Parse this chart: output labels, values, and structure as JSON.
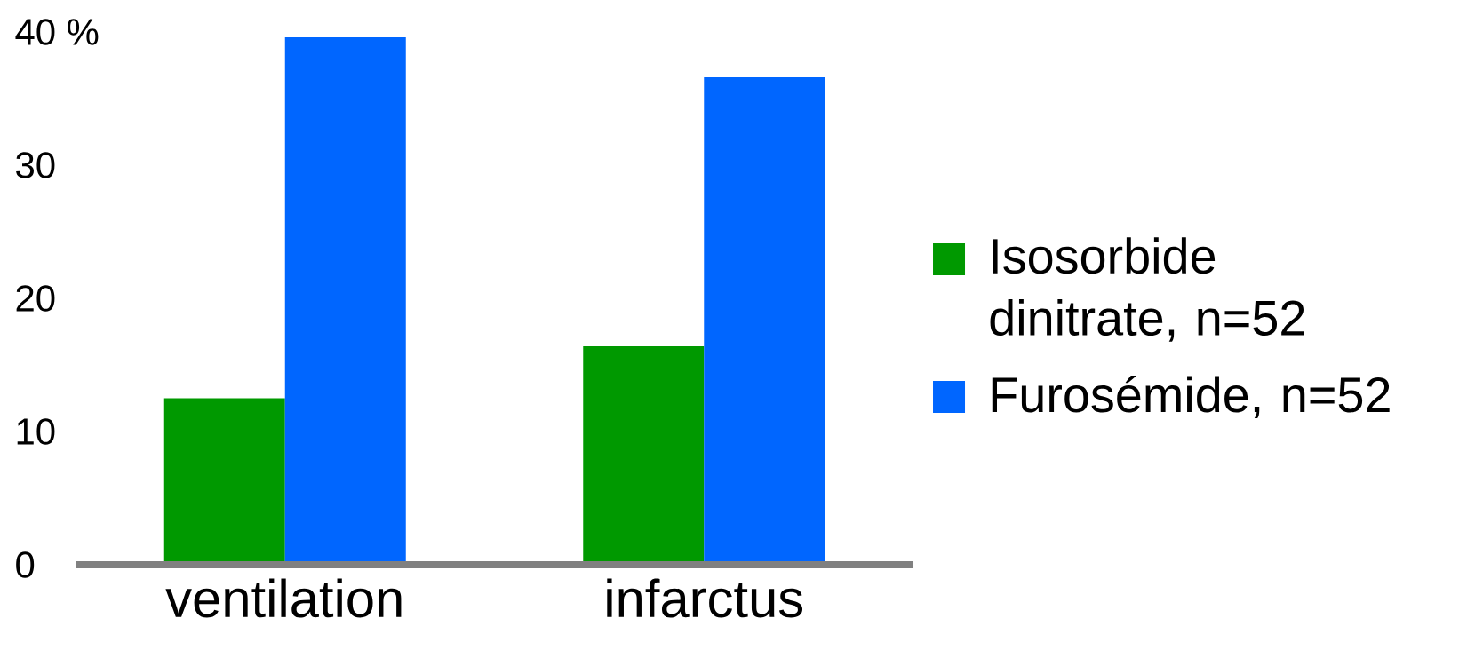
{
  "chart_data": {
    "type": "bar",
    "categories": [
      "ventilation",
      "infarctus"
    ],
    "series": [
      {
        "name": "Isosorbide dinitrate, n=52",
        "color": "#009900",
        "values": [
          12.5,
          16.4
        ]
      },
      {
        "name": "Furosémide, n=52",
        "color": "#0066ff",
        "values": [
          39.6,
          36.6
        ]
      }
    ],
    "ylim": [
      0,
      40
    ],
    "yticks": [
      0,
      10,
      20,
      30,
      {
        "value": 40,
        "label": "40 %"
      }
    ],
    "legend": "right"
  }
}
